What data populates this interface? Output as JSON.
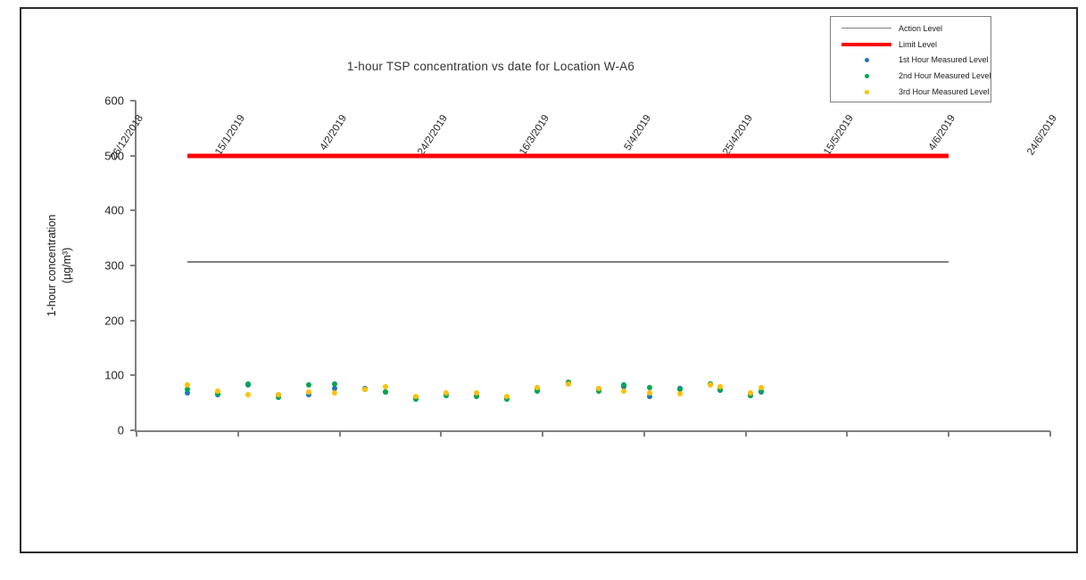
{
  "figure": {
    "title": "1-hour TSP concentration vs date for Location  W-A6"
  },
  "y_axis": {
    "label_line1": "1-hour concentration",
    "label_line2": "(µg/m³)",
    "ticks": [
      "0",
      "100",
      "200",
      "300",
      "400",
      "500",
      "600"
    ],
    "min": 0,
    "max": 600
  },
  "x_axis": {
    "ticks": [
      "26/12/2018",
      "15/1/2019",
      "4/2/2019",
      "24/2/2019",
      "16/3/2019",
      "5/4/2019",
      "25/4/2019",
      "15/5/2019",
      "4/6/2019",
      "24/6/2019"
    ],
    "tick_step_days": 20,
    "range_days": 180
  },
  "legend": {
    "entries": [
      {
        "label": "Action Level",
        "type": "line",
        "color": "#808080"
      },
      {
        "label": "Limit Level",
        "type": "line-thick",
        "color": "#FF0000"
      },
      {
        "label": "1st Hour Measured Level",
        "type": "dot",
        "color": "#1F75BC"
      },
      {
        "label": "2nd Hour Measured Level",
        "type": "dot",
        "color": "#00A550"
      },
      {
        "label": "3rd Hour Measured Level",
        "type": "dot",
        "color": "#FFC000"
      }
    ]
  },
  "chart_data": {
    "type": "scatter",
    "title": "1-hour TSP concentration vs date for Location  W-A6",
    "ylabel": "1-hour concentration (µg/m³)",
    "ylim": [
      0,
      600
    ],
    "grid": false,
    "legend_position": "top-right",
    "x_tick_labels": [
      "26/12/2018",
      "15/1/2019",
      "4/2/2019",
      "24/2/2019",
      "16/3/2019",
      "5/4/2019",
      "25/4/2019",
      "15/5/2019",
      "4/6/2019",
      "24/6/2019"
    ],
    "reference_lines": [
      {
        "name": "Action Level",
        "value": 306,
        "color": "#808080",
        "thickness_px": 2,
        "start_day": 10,
        "end_day": 160,
        "start_date": "5/1/2019",
        "end_date": "4/6/2019"
      },
      {
        "name": "Limit Level",
        "value": 500,
        "color": "#FF0000",
        "thickness_px": 5,
        "start_day": 10,
        "end_day": 160,
        "start_date": "5/1/2019",
        "end_date": "4/6/2019"
      }
    ],
    "dates": [
      "5/1/2019",
      "11/1/2019",
      "17/1/2019",
      "23/1/2019",
      "29/1/2019",
      "3/2/2019",
      "9/2/2019",
      "13/2/2019",
      "19/2/2019",
      "25/2/2019",
      "3/3/2019",
      "9/3/2019",
      "15/3/2019",
      "21/3/2019",
      "27/3/2019",
      "1/4/2019",
      "6/4/2019",
      "12/4/2019",
      "18/4/2019",
      "20/4/2019",
      "26/4/2019",
      "28/4/2019"
    ],
    "days": [
      10,
      16,
      22,
      28,
      34,
      39,
      45,
      49,
      55,
      61,
      67,
      73,
      79,
      85,
      91,
      96,
      101,
      107,
      113,
      115,
      121,
      123
    ],
    "series": [
      {
        "name": "1st Hour Measured Level",
        "color": "#1F75BC",
        "values": [
          68,
          65,
          82,
          65,
          65,
          77,
          77,
          69,
          60,
          65,
          64,
          58,
          75,
          85,
          74,
          79,
          62,
          76,
          85,
          73,
          64,
          70
        ]
      },
      {
        "name": "2nd Hour Measured Level",
        "color": "#00A550",
        "values": [
          74,
          66,
          85,
          60,
          82,
          85,
          74,
          69,
          57,
          63,
          62,
          57,
          72,
          88,
          72,
          82,
          78,
          74,
          84,
          75,
          63,
          72
        ]
      },
      {
        "name": "3rd Hour Measured Level",
        "color": "#FFC000",
        "values": [
          82,
          72,
          65,
          65,
          70,
          68,
          74,
          80,
          62,
          68,
          68,
          61,
          78,
          84,
          76,
          72,
          68,
          66,
          82,
          80,
          68,
          78
        ]
      }
    ]
  }
}
